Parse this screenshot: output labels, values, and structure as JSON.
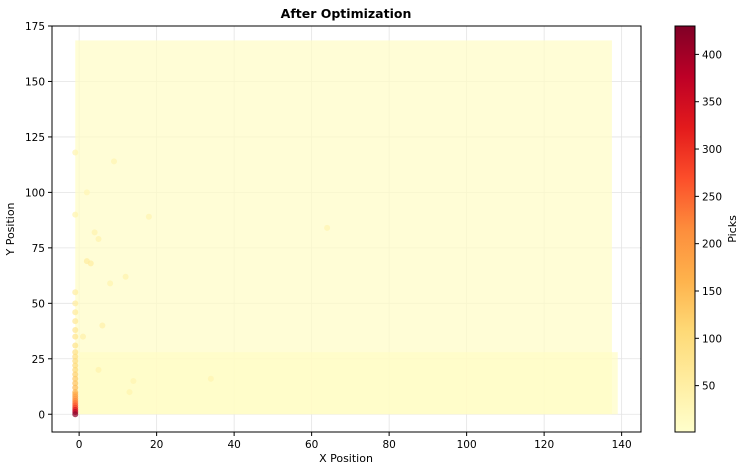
{
  "chart_data": {
    "type": "scatter",
    "title": "After Optimization",
    "xlabel": "X Position",
    "ylabel": "Y Position",
    "xlim": [
      -7,
      145
    ],
    "ylim": [
      -8,
      175
    ],
    "xticks": [
      0,
      20,
      40,
      60,
      80,
      100,
      120,
      140
    ],
    "yticks": [
      0,
      25,
      50,
      75,
      100,
      125,
      150,
      175
    ],
    "grid": true,
    "colormap": "YlOrRd",
    "colorbar": {
      "label": "Picks",
      "range": [
        1,
        430
      ],
      "ticks": [
        50,
        100,
        150,
        200,
        250,
        300,
        350,
        400
      ]
    },
    "series": [
      {
        "grid_region_1": {
          "x_range": [
            -1,
            137.5
          ],
          "y_range": [
            0,
            168.5
          ],
          "typical_picks": 10
        },
        "grid_region_2": {
          "x_range": [
            0,
            139
          ],
          "y_range": [
            0,
            28
          ],
          "typical_picks": 10
        },
        "hotspots": [
          {
            "x": -1,
            "y": 0,
            "picks": 420
          },
          {
            "x": -1,
            "y": 1,
            "picks": 380
          },
          {
            "x": -1,
            "y": 2,
            "picks": 330
          },
          {
            "x": -1,
            "y": 3,
            "picks": 290
          },
          {
            "x": -1,
            "y": 4,
            "picks": 260
          },
          {
            "x": -1,
            "y": 5,
            "picks": 240
          },
          {
            "x": -1,
            "y": 6,
            "picks": 220
          },
          {
            "x": -1,
            "y": 7,
            "picks": 200
          },
          {
            "x": -1,
            "y": 8,
            "picks": 190
          },
          {
            "x": -1,
            "y": 9,
            "picks": 170
          },
          {
            "x": -1,
            "y": 10,
            "picks": 160
          },
          {
            "x": -1,
            "y": 12,
            "picks": 150
          },
          {
            "x": -1,
            "y": 14,
            "picks": 140
          },
          {
            "x": -1,
            "y": 16,
            "picks": 130
          },
          {
            "x": -1,
            "y": 18,
            "picks": 120
          },
          {
            "x": -1,
            "y": 20,
            "picks": 110
          },
          {
            "x": -1,
            "y": 22,
            "picks": 105
          },
          {
            "x": -1,
            "y": 24,
            "picks": 100
          },
          {
            "x": -1,
            "y": 26,
            "picks": 95
          },
          {
            "x": -1,
            "y": 28,
            "picks": 90
          },
          {
            "x": -1,
            "y": 31,
            "picks": 85
          },
          {
            "x": -1,
            "y": 35,
            "picks": 80
          },
          {
            "x": -1,
            "y": 38,
            "picks": 75
          },
          {
            "x": -1,
            "y": 42,
            "picks": 70
          },
          {
            "x": -1,
            "y": 46,
            "picks": 65
          },
          {
            "x": -1,
            "y": 50,
            "picks": 60
          },
          {
            "x": -1,
            "y": 55,
            "picks": 55
          },
          {
            "x": 2,
            "y": 69,
            "picks": 60
          },
          {
            "x": 3,
            "y": 68,
            "picks": 55
          },
          {
            "x": 6,
            "y": 40,
            "picks": 45
          },
          {
            "x": 1,
            "y": 35,
            "picks": 45
          },
          {
            "x": 4,
            "y": 82,
            "picks": 40
          },
          {
            "x": 5,
            "y": 79,
            "picks": 40
          },
          {
            "x": 12,
            "y": 62,
            "picks": 40
          },
          {
            "x": 8,
            "y": 59,
            "picks": 38
          },
          {
            "x": 5,
            "y": 20,
            "picks": 40
          },
          {
            "x": 14,
            "y": 15,
            "picks": 35
          },
          {
            "x": 13,
            "y": 10,
            "picks": 38
          },
          {
            "x": 18,
            "y": 89,
            "picks": 35
          },
          {
            "x": 9,
            "y": 114,
            "picks": 35
          },
          {
            "x": 34,
            "y": 16,
            "picks": 35
          },
          {
            "x": 64,
            "y": 84,
            "picks": 35
          },
          {
            "x": -1,
            "y": 90,
            "picks": 38
          },
          {
            "x": -1,
            "y": 118,
            "picks": 35
          },
          {
            "x": 2,
            "y": 100,
            "picks": 32
          }
        ]
      }
    ]
  }
}
